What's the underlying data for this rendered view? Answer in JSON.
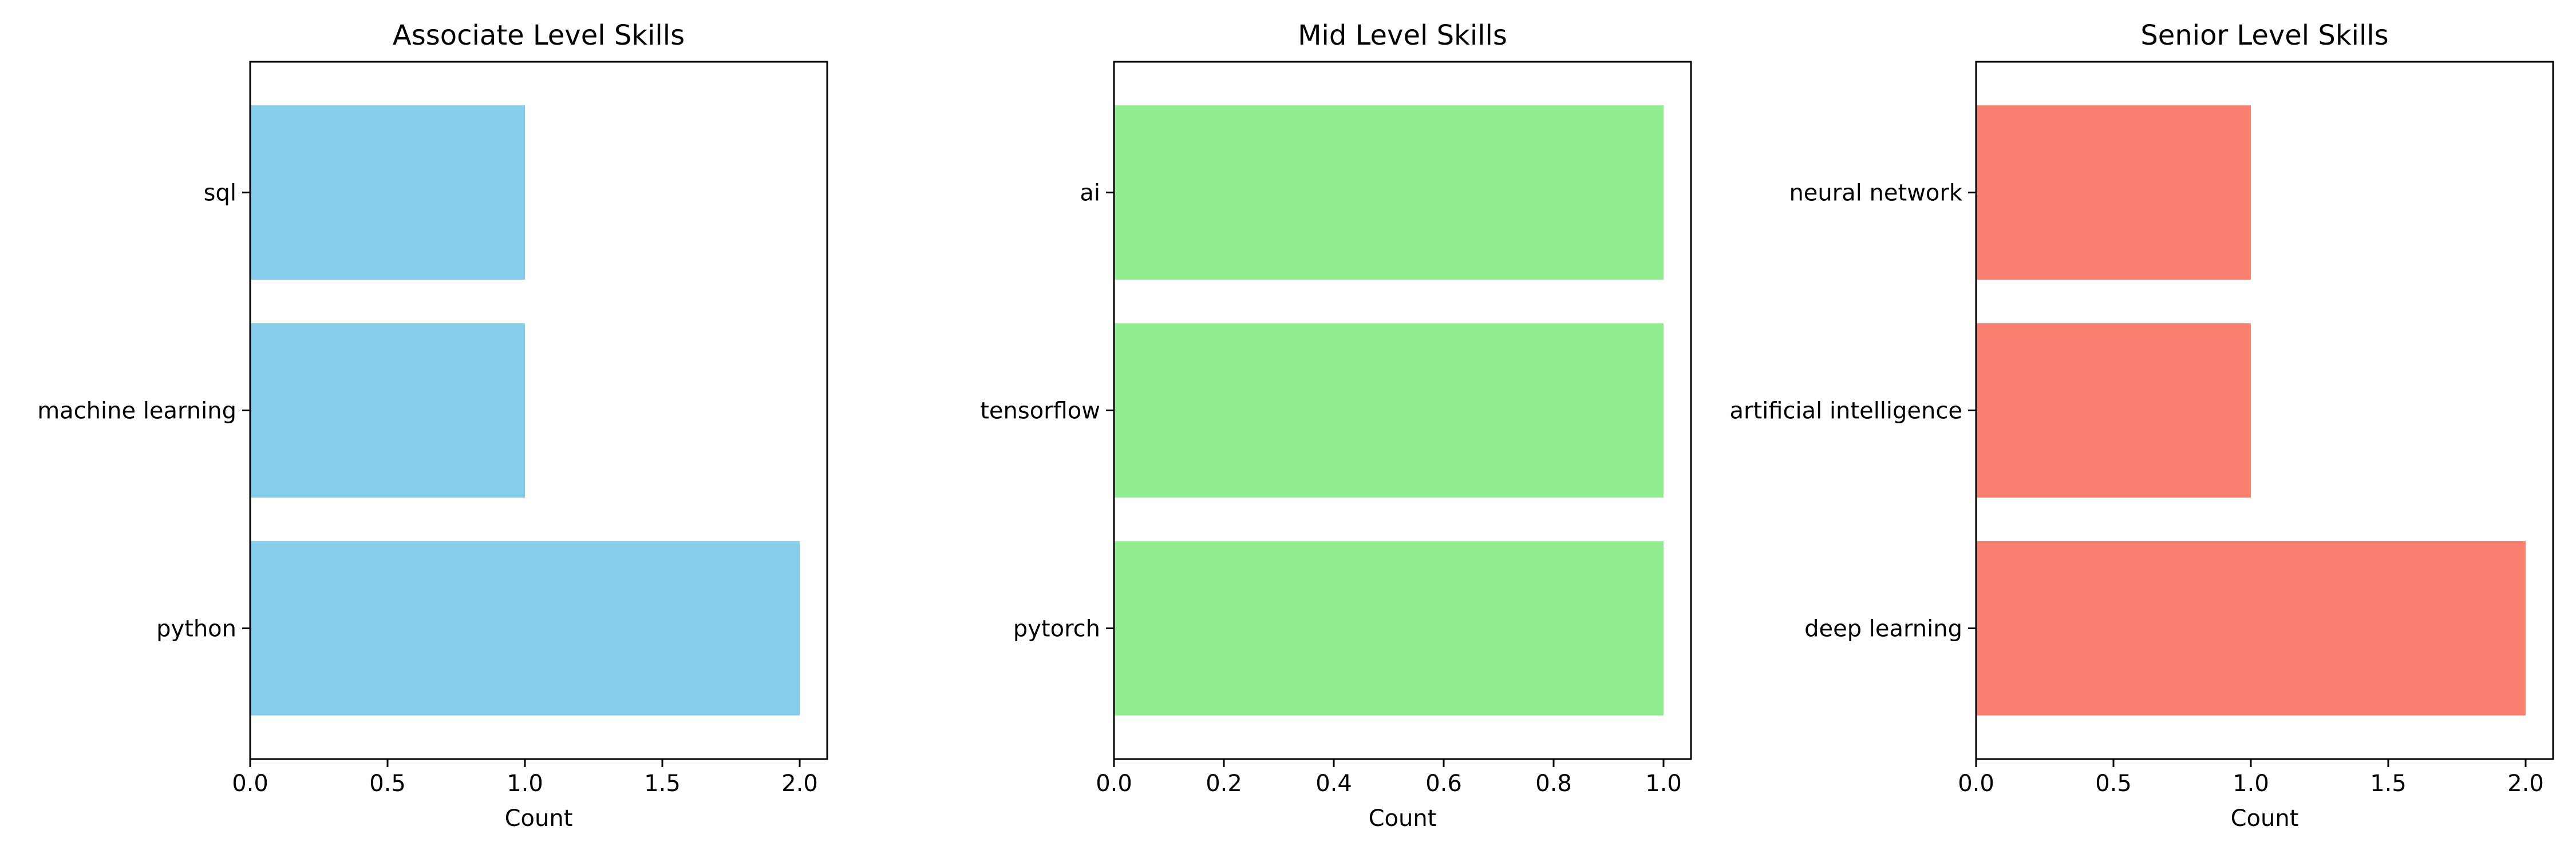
{
  "chart_data": [
    {
      "type": "bar",
      "orientation": "horizontal",
      "title": "Associate Level Skills",
      "categories": [
        "python",
        "machine learning",
        "sql"
      ],
      "values": [
        2,
        1,
        1
      ],
      "xlabel": "Count",
      "ylabel": "",
      "xlim": [
        0,
        2.1
      ],
      "xticks": [
        "0.0",
        "0.5",
        "1.0",
        "1.5",
        "2.0"
      ],
      "color": "#87CEEB",
      "grid": false
    },
    {
      "type": "bar",
      "orientation": "horizontal",
      "title": "Mid Level Skills",
      "categories": [
        "pytorch",
        "tensorflow",
        "ai"
      ],
      "values": [
        1,
        1,
        1
      ],
      "xlabel": "Count",
      "ylabel": "",
      "xlim": [
        0,
        1.05
      ],
      "xticks": [
        "0.0",
        "0.2",
        "0.4",
        "0.6",
        "0.8",
        "1.0"
      ],
      "color": "#90EE90",
      "grid": false
    },
    {
      "type": "bar",
      "orientation": "horizontal",
      "title": "Senior Level Skills",
      "categories": [
        "deep learning",
        "artificial intelligence",
        "neural network"
      ],
      "values": [
        2,
        1,
        1
      ],
      "xlabel": "Count",
      "ylabel": "",
      "xlim": [
        0,
        2.1
      ],
      "xticks": [
        "0.0",
        "0.5",
        "1.0",
        "1.5",
        "2.0"
      ],
      "color": "#FA8072",
      "grid": false
    }
  ]
}
